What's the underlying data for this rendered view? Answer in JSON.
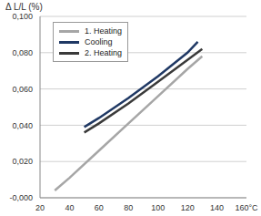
{
  "chart_data": {
    "type": "line",
    "ylabel": "Δ L/L (%)",
    "xlim": [
      20,
      160
    ],
    "xticks": [
      20,
      40,
      60,
      80,
      100,
      120,
      140,
      {
        "value": 160,
        "label": "160°C"
      }
    ],
    "ylim": [
      0,
      0.1
    ],
    "yticks": [
      {
        "value": 0,
        "label": "-0,000"
      },
      {
        "value": 0.02,
        "label": "0,020"
      },
      {
        "value": 0.04,
        "label": "0,040"
      },
      {
        "value": 0.06,
        "label": "0,060"
      },
      {
        "value": 0.08,
        "label": "0,080"
      },
      {
        "value": 0.1,
        "label": "0,100"
      }
    ],
    "grid": true,
    "legend": "upper left",
    "series": [
      {
        "name": "1. Heating",
        "color": "#a6a6a6",
        "x": [
          30,
          40,
          60,
          80,
          100,
          120,
          130
        ],
        "values": [
          0.004,
          0.011,
          0.026,
          0.041,
          0.056,
          0.071,
          0.078
        ]
      },
      {
        "name": "Cooling",
        "color": "#1f3864",
        "x": [
          50,
          60,
          80,
          100,
          120,
          127
        ],
        "values": [
          0.039,
          0.044,
          0.055,
          0.067,
          0.08,
          0.086
        ]
      },
      {
        "name": "2. Heating",
        "color": "#3a3a3a",
        "x": [
          50,
          60,
          80,
          100,
          120,
          130
        ],
        "values": [
          0.036,
          0.041,
          0.052,
          0.064,
          0.076,
          0.082
        ]
      }
    ]
  }
}
